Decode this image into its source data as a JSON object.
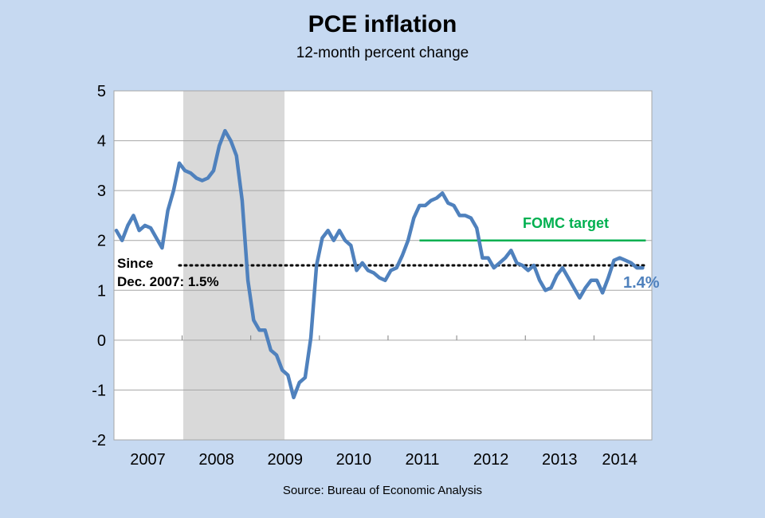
{
  "header": {
    "title": "PCE inflation",
    "subtitle": "12-month percent change"
  },
  "footer": {
    "source": "Source: Bureau of Economic Analysis"
  },
  "chart_data": {
    "type": "line",
    "title": "PCE inflation",
    "subtitle": "12-month percent change",
    "xlabel": "",
    "ylabel": "",
    "ylim": [
      -2,
      5
    ],
    "yticks": [
      -2,
      -1,
      0,
      1,
      2,
      3,
      4,
      5
    ],
    "xlim": [
      "2007-01",
      "2014-09"
    ],
    "x_tick_labels": [
      "2007",
      "2008",
      "2009",
      "2010",
      "2011",
      "2012",
      "2013",
      "2014"
    ],
    "grid": true,
    "colors": {
      "plot_background": "#ffffff",
      "page_background": "#c6d9f1",
      "series": "#4f81bd",
      "target": "#00b050",
      "recession": "#d9d9d9",
      "average": "#000000"
    },
    "recession_shading": {
      "start": "2008-01",
      "end": "2009-06"
    },
    "series": [
      {
        "x": [
          "2007-01",
          "2007-02",
          "2007-03",
          "2007-04",
          "2007-05",
          "2007-06",
          "2007-07",
          "2007-08",
          "2007-09",
          "2007-10",
          "2007-11",
          "2007-12",
          "2008-01",
          "2008-02",
          "2008-03",
          "2008-04",
          "2008-05",
          "2008-06",
          "2008-07",
          "2008-08",
          "2008-09",
          "2008-10",
          "2008-11",
          "2008-12",
          "2009-01",
          "2009-02",
          "2009-03",
          "2009-04",
          "2009-05",
          "2009-06",
          "2009-07",
          "2009-08",
          "2009-09",
          "2009-10",
          "2009-11",
          "2009-12",
          "2010-01",
          "2010-02",
          "2010-03",
          "2010-04",
          "2010-05",
          "2010-06",
          "2010-07",
          "2010-08",
          "2010-09",
          "2010-10",
          "2010-11",
          "2010-12",
          "2011-01",
          "2011-02",
          "2011-03",
          "2011-04",
          "2011-05",
          "2011-06",
          "2011-07",
          "2011-08",
          "2011-09",
          "2011-10",
          "2011-11",
          "2011-12",
          "2012-01",
          "2012-02",
          "2012-03",
          "2012-04",
          "2012-05",
          "2012-06",
          "2012-07",
          "2012-08",
          "2012-09",
          "2012-10",
          "2012-11",
          "2012-12",
          "2013-01",
          "2013-02",
          "2013-03",
          "2013-04",
          "2013-05",
          "2013-06",
          "2013-07",
          "2013-08",
          "2013-09",
          "2013-10",
          "2013-11",
          "2013-12",
          "2014-01",
          "2014-02",
          "2014-03",
          "2014-04",
          "2014-05",
          "2014-06",
          "2014-07",
          "2014-08",
          "2014-09"
        ],
        "values": [
          2.2,
          2.0,
          2.3,
          2.5,
          2.2,
          2.3,
          2.25,
          2.05,
          1.85,
          2.6,
          3.0,
          3.55,
          3.4,
          3.35,
          3.25,
          3.2,
          3.25,
          3.4,
          3.9,
          4.2,
          4.0,
          3.7,
          2.8,
          1.2,
          0.4,
          0.2,
          0.2,
          -0.2,
          -0.3,
          -0.6,
          -0.7,
          -1.15,
          -0.85,
          -0.75,
          0.05,
          1.5,
          2.05,
          2.2,
          2.0,
          2.2,
          2.0,
          1.9,
          1.4,
          1.55,
          1.4,
          1.35,
          1.25,
          1.2,
          1.4,
          1.45,
          1.7,
          2.0,
          2.45,
          2.7,
          2.7,
          2.8,
          2.85,
          2.95,
          2.75,
          2.7,
          2.5,
          2.5,
          2.45,
          2.25,
          1.65,
          1.65,
          1.45,
          1.55,
          1.65,
          1.8,
          1.55,
          1.5,
          1.4,
          1.5,
          1.2,
          1.0,
          1.05,
          1.3,
          1.45,
          1.25,
          1.05,
          0.85,
          1.05,
          1.2,
          1.2,
          0.95,
          1.25,
          1.6,
          1.65,
          1.6,
          1.55,
          1.45,
          1.45
        ]
      }
    ],
    "annotations": {
      "target_label": "FOMC target",
      "target_value": 2.0,
      "target_start": "2011-06",
      "target_end": "2014-09",
      "average_label_line1": "Since",
      "average_label_line2": "Dec. 2007: 1.5%",
      "average_value": 1.5,
      "average_start": "2007-12",
      "average_end": "2014-09",
      "latest_label": "1.4%"
    }
  }
}
